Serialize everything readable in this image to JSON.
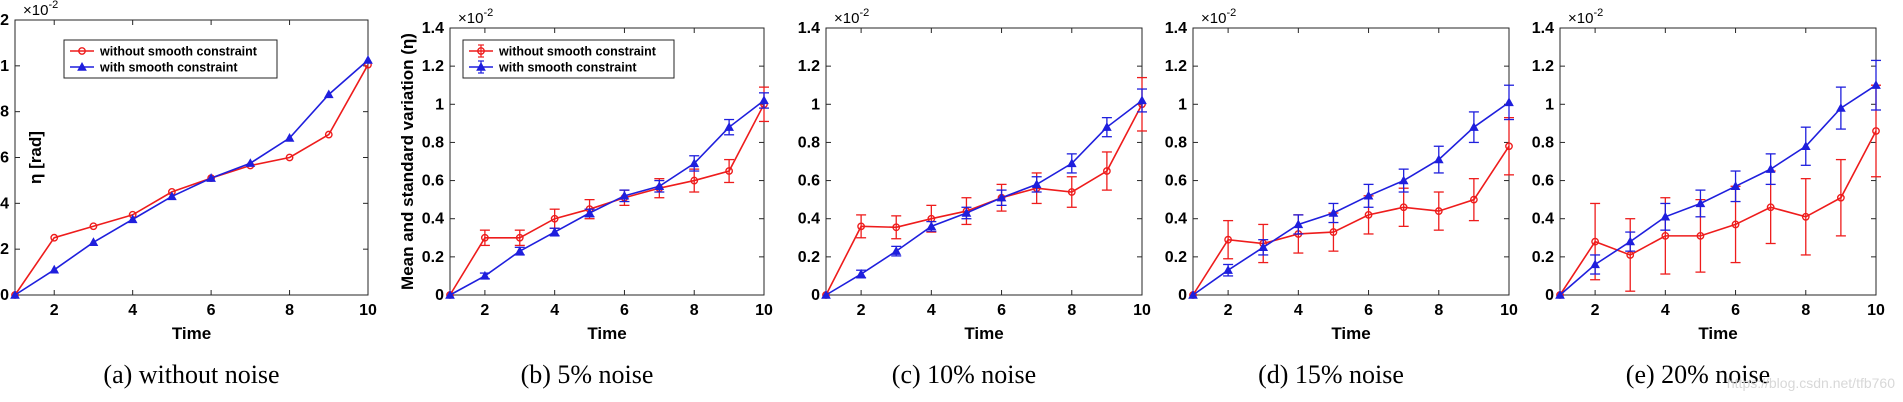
{
  "colors": {
    "without": "#ee1c1c",
    "with": "#1f1fdd"
  },
  "watermark": "https://blog.csdn.net/tfb760",
  "chart_data": [
    {
      "type": "line",
      "caption": "(a) without noise",
      "xlabel": "Time",
      "ylabel": "η [rad]",
      "exponent": "×10-2",
      "xlim": [
        1,
        10
      ],
      "ylim": [
        0,
        1.2
      ],
      "yticks": [
        0,
        0.2,
        0.4,
        0.6,
        0.8,
        1,
        1.2
      ],
      "xticks": [
        2,
        4,
        6,
        8,
        10
      ],
      "x": [
        1,
        2,
        3,
        4,
        5,
        6,
        7,
        8,
        9,
        10
      ],
      "legend": "top-left",
      "series": [
        {
          "name": "without smooth constraint",
          "marker": "circle",
          "values": [
            0,
            0.25,
            0.3,
            0.35,
            0.45,
            0.51,
            0.565,
            0.6,
            0.7,
            1.005
          ]
        },
        {
          "name": "with smooth constraint",
          "marker": "triangle",
          "values": [
            0,
            0.11,
            0.23,
            0.33,
            0.43,
            0.51,
            0.575,
            0.685,
            0.875,
            1.025
          ]
        }
      ]
    },
    {
      "type": "line",
      "caption": "(b) 5% noise",
      "xlabel": "Time",
      "ylabel": "Mean and standard variation (η)",
      "exponent": "×10-2",
      "xlim": [
        1,
        10
      ],
      "ylim": [
        0,
        1.4
      ],
      "yticks": [
        0,
        0.2,
        0.4,
        0.6,
        0.8,
        1,
        1.2,
        1.4
      ],
      "xticks": [
        2,
        4,
        6,
        8,
        10
      ],
      "x": [
        1,
        2,
        3,
        4,
        5,
        6,
        7,
        8,
        9,
        10
      ],
      "legend": "top-left",
      "series": [
        {
          "name": "without smooth constraint",
          "marker": "circle",
          "values": [
            0,
            0.3,
            0.3,
            0.4,
            0.45,
            0.51,
            0.56,
            0.6,
            0.65,
            1.0
          ],
          "err": [
            0,
            0.04,
            0.04,
            0.05,
            0.05,
            0.04,
            0.05,
            0.06,
            0.06,
            0.09
          ]
        },
        {
          "name": "with smooth constraint",
          "marker": "triangle",
          "values": [
            0,
            0.1,
            0.23,
            0.33,
            0.43,
            0.52,
            0.57,
            0.69,
            0.88,
            1.02
          ],
          "err": [
            0,
            0.015,
            0.02,
            0.02,
            0.02,
            0.03,
            0.03,
            0.04,
            0.04,
            0.04
          ]
        }
      ]
    },
    {
      "type": "line",
      "caption": "(c) 10% noise",
      "xlabel": "Time",
      "ylabel": "",
      "exponent": "×10-2",
      "xlim": [
        1,
        10
      ],
      "ylim": [
        0,
        1.4
      ],
      "yticks": [
        0,
        0.2,
        0.4,
        0.6,
        0.8,
        1,
        1.2,
        1.4
      ],
      "xticks": [
        2,
        4,
        6,
        8,
        10
      ],
      "x": [
        1,
        2,
        3,
        4,
        5,
        6,
        7,
        8,
        9,
        10
      ],
      "series": [
        {
          "name": "without smooth constraint",
          "marker": "circle",
          "values": [
            0,
            0.36,
            0.355,
            0.4,
            0.44,
            0.51,
            0.56,
            0.54,
            0.65,
            1.0
          ],
          "err": [
            0,
            0.06,
            0.06,
            0.07,
            0.07,
            0.07,
            0.08,
            0.08,
            0.1,
            0.14
          ]
        },
        {
          "name": "with smooth constraint",
          "marker": "triangle",
          "values": [
            0,
            0.11,
            0.23,
            0.36,
            0.43,
            0.51,
            0.58,
            0.69,
            0.88,
            1.02
          ],
          "err": [
            0,
            0.02,
            0.025,
            0.025,
            0.03,
            0.04,
            0.04,
            0.05,
            0.05,
            0.06
          ]
        }
      ]
    },
    {
      "type": "line",
      "caption": "(d) 15% noise",
      "xlabel": "Time",
      "ylabel": "",
      "exponent": "×10-2",
      "xlim": [
        1,
        10
      ],
      "ylim": [
        0,
        1.4
      ],
      "yticks": [
        0,
        0.2,
        0.4,
        0.6,
        0.8,
        1,
        1.2,
        1.4
      ],
      "xticks": [
        2,
        4,
        6,
        8,
        10
      ],
      "x": [
        1,
        2,
        3,
        4,
        5,
        6,
        7,
        8,
        9,
        10
      ],
      "series": [
        {
          "name": "without smooth constraint",
          "marker": "circle",
          "values": [
            0,
            0.29,
            0.27,
            0.32,
            0.33,
            0.42,
            0.46,
            0.44,
            0.5,
            0.78
          ],
          "err": [
            0,
            0.1,
            0.1,
            0.1,
            0.1,
            0.1,
            0.1,
            0.1,
            0.11,
            0.15
          ]
        },
        {
          "name": "with smooth constraint",
          "marker": "triangle",
          "values": [
            0,
            0.13,
            0.25,
            0.37,
            0.43,
            0.52,
            0.6,
            0.71,
            0.88,
            1.01
          ],
          "err": [
            0,
            0.03,
            0.04,
            0.05,
            0.05,
            0.06,
            0.06,
            0.07,
            0.08,
            0.09
          ]
        }
      ]
    },
    {
      "type": "line",
      "caption": "(e) 20% noise",
      "xlabel": "Time",
      "ylabel": "",
      "exponent": "×10-2",
      "xlim": [
        1,
        10
      ],
      "ylim": [
        0,
        1.4
      ],
      "yticks": [
        0,
        0.2,
        0.4,
        0.6,
        0.8,
        1,
        1.2,
        1.4
      ],
      "xticks": [
        2,
        4,
        6,
        8,
        10
      ],
      "x": [
        1,
        2,
        3,
        4,
        5,
        6,
        7,
        8,
        9,
        10
      ],
      "series": [
        {
          "name": "without smooth constraint",
          "marker": "circle",
          "values": [
            0,
            0.28,
            0.21,
            0.31,
            0.31,
            0.37,
            0.46,
            0.41,
            0.51,
            0.86
          ],
          "err": [
            0,
            0.2,
            0.19,
            0.2,
            0.19,
            0.2,
            0.19,
            0.2,
            0.2,
            0.24
          ]
        },
        {
          "name": "with smooth constraint",
          "marker": "triangle",
          "values": [
            0,
            0.16,
            0.28,
            0.41,
            0.48,
            0.57,
            0.66,
            0.78,
            0.98,
            1.1
          ],
          "err": [
            0,
            0.05,
            0.05,
            0.07,
            0.07,
            0.08,
            0.08,
            0.1,
            0.11,
            0.13
          ]
        }
      ]
    }
  ]
}
